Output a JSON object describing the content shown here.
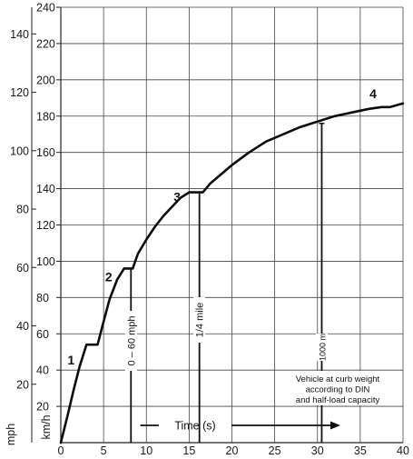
{
  "chart_data": {
    "type": "line",
    "title": "",
    "xlabel": "Time (s)",
    "ylabel_primary": "km/h",
    "ylabel_secondary": "mph",
    "xlim": [
      0,
      40
    ],
    "ylim": [
      0,
      240
    ],
    "y2lim_mph": [
      0,
      149.1
    ],
    "grid": true,
    "x_ticks": [
      "0",
      "5",
      "10",
      "15",
      "20",
      "25",
      "30",
      "35",
      "40"
    ],
    "y_ticks": [
      "20",
      "40",
      "60",
      "80",
      "100",
      "120",
      "140",
      "160",
      "180",
      "200",
      "220",
      "240"
    ],
    "y2_ticks": [
      "20",
      "40",
      "60",
      "80",
      "100",
      "120",
      "140"
    ],
    "series": [
      {
        "x": [
          0,
          0.8,
          1.5,
          2.2,
          3.0,
          3.8,
          4.3,
          4.9,
          5.7,
          6.6,
          7.4,
          8.0,
          8.4,
          9.0,
          10.0,
          11.0,
          12.0,
          13.0,
          14.0,
          15.0,
          15.7,
          16.1,
          16.6,
          17.5,
          19.0,
          20.0,
          22.0,
          24.0,
          26.0,
          28.0,
          30.0,
          32.0,
          34.0,
          36.0,
          37.5,
          38.5,
          40.0
        ],
        "y": [
          0,
          15,
          29,
          42,
          54,
          54,
          54,
          65,
          79,
          90,
          96,
          96,
          96,
          104,
          112,
          119,
          125,
          130,
          135,
          138,
          138,
          138,
          138,
          143,
          149,
          153,
          160,
          166,
          170,
          174,
          177,
          180,
          182,
          184,
          185,
          185,
          187
        ]
      }
    ],
    "gear_labels": [
      {
        "text": "1",
        "x": 1.2,
        "y": 43
      },
      {
        "text": "2",
        "x": 5.6,
        "y": 89
      },
      {
        "text": "3",
        "x": 13.6,
        "y": 133
      },
      {
        "text": "4",
        "x": 36.5,
        "y": 190
      }
    ],
    "markers": [
      {
        "label": "0 – 60 mph",
        "x": 8.2,
        "y_top": 96
      },
      {
        "label": "1/4 mile",
        "x": 16.2,
        "y_top": 138
      },
      {
        "label": "1000 m",
        "x": 30.5,
        "y_top": 176
      }
    ],
    "note_lines": [
      "Vehicle at curb weight",
      "according to DIN",
      "and half-load capacity"
    ]
  }
}
